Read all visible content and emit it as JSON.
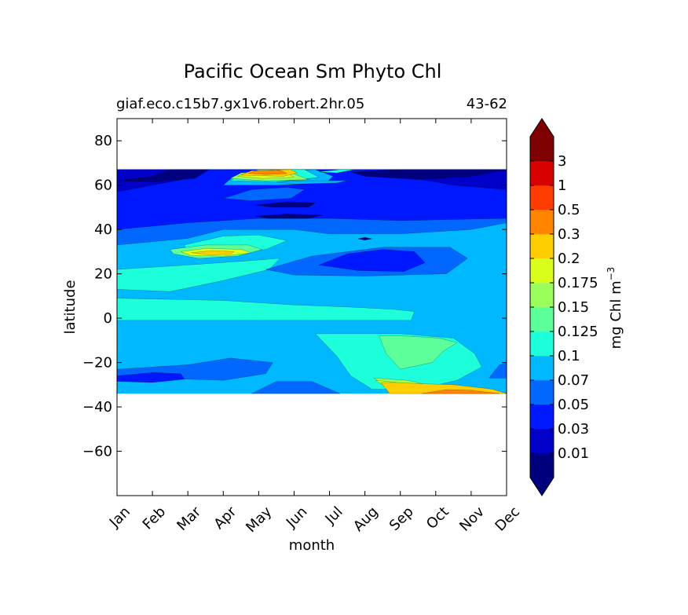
{
  "chart_data": {
    "type": "filled-contour",
    "title": "Pacific Ocean Sm Phyto Chl",
    "subtitle_left": "giaf.eco.c15b7.gx1v6.robert.2hr.05",
    "subtitle_right": "43-62",
    "xlabel": "month",
    "ylabel": "latitude",
    "x_categories": [
      "Jan",
      "Feb",
      "Mar",
      "Apr",
      "May",
      "Jun",
      "Jul",
      "Aug",
      "Sep",
      "Oct",
      "Nov",
      "Dec"
    ],
    "xlim": [
      0,
      11
    ],
    "ylim": [
      -80,
      90
    ],
    "y_ticks": [
      80,
      60,
      40,
      20,
      0,
      -20,
      -40,
      -60
    ],
    "y_tick_labels": [
      "80",
      "60",
      "40",
      "20",
      "0",
      "−20",
      "−40",
      "−60"
    ],
    "data_lat_range": [
      -34,
      67
    ],
    "colorbar": {
      "label_main": "mg Chl m",
      "label_exp": "−3",
      "levels": [
        "0.01",
        "0.03",
        "0.05",
        "0.07",
        "0.1",
        "0.125",
        "0.15",
        "0.175",
        "0.2",
        "0.3",
        "0.5",
        "1",
        "3"
      ],
      "colors": [
        "#00007f",
        "#0000c8",
        "#0018ff",
        "#0068ff",
        "#00b8ff",
        "#1cffda",
        "#5cff9a",
        "#9aff5c",
        "#daff1c",
        "#ffce00",
        "#ff8400",
        "#ff3c00",
        "#d80000",
        "#7f0000"
      ],
      "under_color": "#00007f",
      "over_color": "#7f0000"
    },
    "regions": [
      {
        "level": 5,
        "poly": [
          [
            0,
            22
          ],
          [
            2,
            24
          ],
          [
            3.8,
            26
          ],
          [
            4.6,
            27
          ],
          [
            4.3,
            22
          ],
          [
            3,
            17
          ],
          [
            1.5,
            12
          ],
          [
            0,
            13
          ]
        ]
      },
      {
        "level": 5,
        "poly": [
          [
            0,
            9
          ],
          [
            3,
            8
          ],
          [
            5,
            6
          ],
          [
            6.6,
            5
          ],
          [
            7.8,
            4
          ],
          [
            8.4,
            3
          ],
          [
            8.3,
            -1
          ],
          [
            6,
            -1
          ],
          [
            3,
            -1
          ],
          [
            0,
            -1
          ]
        ]
      },
      {
        "level": 5,
        "poly": [
          [
            1.9,
            33
          ],
          [
            3,
            37
          ],
          [
            4,
            37.5
          ],
          [
            4.8,
            35
          ],
          [
            4.2,
            31
          ],
          [
            3,
            29
          ],
          [
            2,
            30
          ]
        ]
      },
      {
        "level": 6,
        "poly": [
          [
            1.5,
            31
          ],
          [
            2.5,
            33
          ],
          [
            3.7,
            33
          ],
          [
            4.1,
            31
          ],
          [
            3.4,
            28
          ],
          [
            2.3,
            27
          ],
          [
            1.6,
            29
          ]
        ]
      },
      {
        "level": 8,
        "poly": [
          [
            1.8,
            30
          ],
          [
            2.5,
            31.5
          ],
          [
            3.5,
            31
          ],
          [
            3.8,
            29.5
          ],
          [
            3,
            28
          ],
          [
            2.1,
            28.2
          ]
        ]
      },
      {
        "level": 9,
        "poly": [
          [
            2.1,
            29.5
          ],
          [
            2.7,
            30.5
          ],
          [
            3.3,
            30
          ],
          [
            3.2,
            28.8
          ],
          [
            2.6,
            28.6
          ]
        ]
      },
      {
        "level": 3,
        "poly": [
          [
            4.2,
            22
          ],
          [
            5.5,
            28
          ],
          [
            7.5,
            32
          ],
          [
            9.4,
            32
          ],
          [
            9.9,
            27
          ],
          [
            9.3,
            20
          ],
          [
            7,
            19
          ],
          [
            5,
            19.5
          ]
        ]
      },
      {
        "level": 2,
        "poly": [
          [
            5.7,
            24
          ],
          [
            6.5,
            29
          ],
          [
            7.5,
            31
          ],
          [
            8.4,
            30
          ],
          [
            8.7,
            25
          ],
          [
            8.1,
            21
          ],
          [
            6.8,
            21.5
          ]
        ]
      },
      {
        "level": 5,
        "poly": [
          [
            5.6,
            -7
          ],
          [
            6.2,
            -17
          ],
          [
            6.6,
            -26
          ],
          [
            7.2,
            -32
          ],
          [
            8.5,
            -32
          ],
          [
            9.6,
            -28
          ],
          [
            10.3,
            -22
          ],
          [
            10.1,
            -16
          ],
          [
            9.5,
            -9
          ],
          [
            8,
            -7
          ]
        ]
      },
      {
        "level": 6,
        "poly": [
          [
            7.4,
            -8
          ],
          [
            7.6,
            -16
          ],
          [
            8,
            -23
          ],
          [
            8.9,
            -20
          ],
          [
            9.2,
            -15
          ],
          [
            9.6,
            -11
          ],
          [
            9.1,
            -9
          ],
          [
            8.1,
            -8
          ]
        ]
      },
      {
        "level": 7,
        "poly": [
          [
            7.25,
            -27
          ],
          [
            7.7,
            -31.5
          ],
          [
            9,
            -31
          ],
          [
            8.2,
            -28
          ]
        ]
      },
      {
        "level": 8,
        "poly": [
          [
            7.3,
            -28
          ],
          [
            7.6,
            -31
          ],
          [
            8.4,
            -31
          ],
          [
            7.9,
            -29
          ]
        ]
      },
      {
        "level": 9,
        "poly": [
          [
            7.45,
            -29
          ],
          [
            7.7,
            -34
          ],
          [
            11,
            -34
          ],
          [
            10.6,
            -32
          ],
          [
            9.5,
            -30
          ],
          [
            8.5,
            -29.5
          ],
          [
            7.9,
            -29
          ]
        ]
      },
      {
        "level": 10,
        "poly": [
          [
            8.6,
            -34
          ],
          [
            9.3,
            -32.2
          ],
          [
            10,
            -32.5
          ],
          [
            10.8,
            -34
          ]
        ]
      },
      {
        "level": 3,
        "poly": [
          [
            0,
            -23
          ],
          [
            2,
            -21
          ],
          [
            3.2,
            -18
          ],
          [
            4.4,
            -20
          ],
          [
            4.2,
            -25
          ],
          [
            3,
            -28
          ],
          [
            1,
            -27
          ],
          [
            0,
            -27
          ]
        ]
      },
      {
        "level": 2,
        "poly": [
          [
            0,
            -26
          ],
          [
            1,
            -24.5
          ],
          [
            1.8,
            -25
          ],
          [
            1.9,
            -27.5
          ],
          [
            1,
            -29
          ],
          [
            0,
            -28.5
          ]
        ]
      },
      {
        "level": 3,
        "poly": [
          [
            3.8,
            -34
          ],
          [
            4.5,
            -28.5
          ],
          [
            5.5,
            -28.5
          ],
          [
            6.3,
            -34
          ]
        ]
      },
      {
        "level": 3,
        "poly": [
          [
            10.5,
            -27
          ],
          [
            10.8,
            -21
          ],
          [
            11,
            -20
          ],
          [
            11,
            -27
          ]
        ]
      },
      {
        "level": 3,
        "poly": [
          [
            0,
            33
          ],
          [
            2,
            36
          ],
          [
            3,
            40
          ],
          [
            5,
            40
          ],
          [
            6,
            38
          ],
          [
            8,
            38
          ],
          [
            10,
            40
          ],
          [
            11,
            43
          ],
          [
            11,
            67
          ],
          [
            0,
            67
          ]
        ]
      },
      {
        "level": 2,
        "poly": [
          [
            0,
            40
          ],
          [
            2,
            43
          ],
          [
            4,
            45
          ],
          [
            6,
            45
          ],
          [
            8,
            44
          ],
          [
            11,
            45
          ],
          [
            11,
            67
          ],
          [
            0,
            67
          ]
        ]
      },
      {
        "level": 1,
        "poly": [
          [
            0,
            57
          ],
          [
            1,
            60
          ],
          [
            2,
            63
          ],
          [
            2.5,
            67
          ],
          [
            7.9,
            67
          ],
          [
            8,
            64
          ],
          [
            8.8,
            62
          ],
          [
            9.5,
            60
          ],
          [
            11,
            58
          ],
          [
            11,
            67
          ],
          [
            0,
            67
          ]
        ]
      },
      {
        "level": 0,
        "poly": [
          [
            0,
            62
          ],
          [
            1,
            64
          ],
          [
            1.5,
            67
          ],
          [
            2.6,
            67
          ],
          [
            2.2,
            63
          ],
          [
            1,
            61.5
          ]
        ]
      },
      {
        "level": 0,
        "poly": [
          [
            6.6,
            66
          ],
          [
            8,
            67
          ],
          [
            11,
            67
          ],
          [
            10,
            64
          ],
          [
            8.5,
            62.5
          ],
          [
            7,
            64
          ]
        ]
      },
      {
        "level": 0,
        "poly": [
          [
            3.9,
            51
          ],
          [
            4.8,
            52.5
          ],
          [
            5.6,
            52
          ],
          [
            5.4,
            50
          ],
          [
            4.4,
            50
          ]
        ]
      },
      {
        "level": 0,
        "poly": [
          [
            3.9,
            46
          ],
          [
            4.8,
            47
          ],
          [
            5.8,
            46.5
          ],
          [
            5.4,
            45
          ],
          [
            4.3,
            45
          ]
        ]
      },
      {
        "level": 0,
        "poly": [
          [
            6.8,
            35.8
          ],
          [
            7,
            36.5
          ],
          [
            7.2,
            35.8
          ],
          [
            7,
            35.2
          ]
        ]
      },
      {
        "level": 3,
        "poly": [
          [
            3,
            54
          ],
          [
            3.8,
            58
          ],
          [
            4.8,
            59
          ],
          [
            5.3,
            58
          ],
          [
            4.9,
            54
          ],
          [
            3.8,
            53
          ]
        ]
      },
      {
        "level": 4,
        "poly": [
          [
            3,
            60
          ],
          [
            3.3,
            64
          ],
          [
            3.8,
            66
          ],
          [
            5.6,
            67
          ],
          [
            6.1,
            64
          ],
          [
            5.9,
            61
          ],
          [
            4.5,
            60
          ]
        ]
      },
      {
        "level": 5,
        "poly": [
          [
            3.2,
            62
          ],
          [
            3.5,
            65
          ],
          [
            4,
            67
          ],
          [
            5.3,
            67
          ],
          [
            5.7,
            63.5
          ],
          [
            4.5,
            61.5
          ]
        ]
      },
      {
        "level": 7,
        "poly": [
          [
            3.2,
            63
          ],
          [
            3.5,
            65.5
          ],
          [
            4.5,
            67
          ],
          [
            5,
            65
          ],
          [
            5.4,
            62.5
          ],
          [
            4.2,
            62
          ]
        ]
      },
      {
        "level": 8,
        "poly": [
          [
            3.4,
            64
          ],
          [
            3.7,
            66
          ],
          [
            4.5,
            67
          ],
          [
            4.8,
            65.5
          ],
          [
            5,
            63.5
          ],
          [
            4.1,
            63
          ]
        ]
      },
      {
        "level": 9,
        "poly": [
          [
            3.5,
            64.5
          ],
          [
            3.8,
            66.5
          ],
          [
            4.9,
            67
          ],
          [
            5.1,
            65.5
          ],
          [
            4.7,
            64
          ]
        ]
      },
      {
        "level": 10,
        "poly": [
          [
            3.7,
            65.3
          ],
          [
            4,
            66.8
          ],
          [
            4.6,
            66.8
          ],
          [
            4.8,
            65.2
          ],
          [
            4.2,
            64.8
          ]
        ]
      },
      {
        "level": 5,
        "poly": [
          [
            5.7,
            66
          ],
          [
            6.3,
            67
          ],
          [
            6.7,
            67
          ],
          [
            6.2,
            65.5
          ]
        ]
      },
      {
        "level": 4,
        "poly": [
          [
            4.5,
            61.5
          ],
          [
            5.2,
            62
          ],
          [
            6.5,
            62
          ],
          [
            6.2,
            61
          ],
          [
            5,
            60.5
          ]
        ]
      }
    ]
  }
}
